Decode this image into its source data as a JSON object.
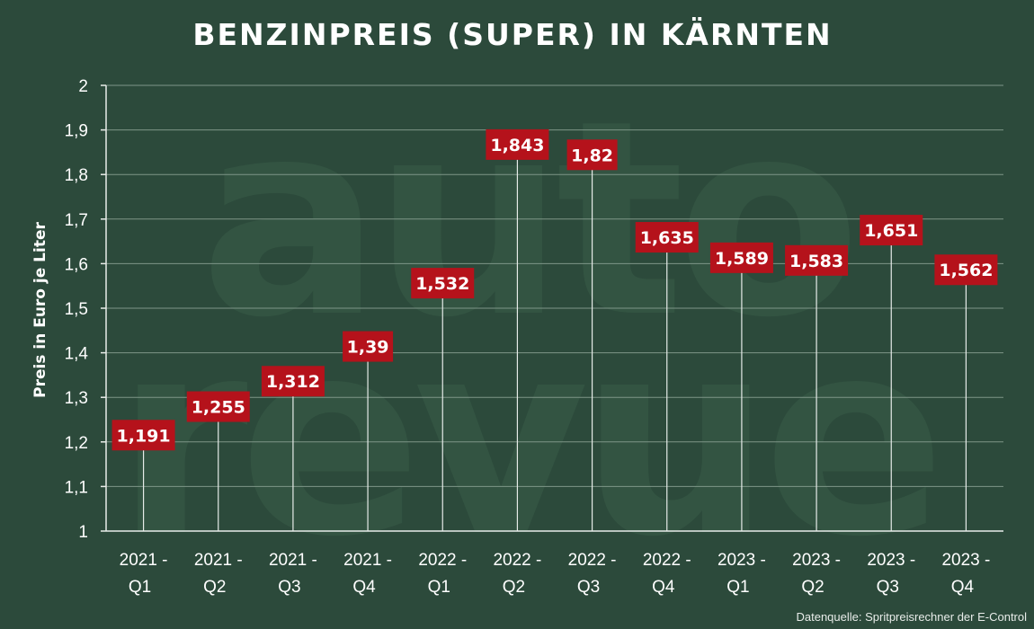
{
  "chart_data": {
    "type": "bar",
    "title": "BENZINPREIS (SUPER) IN KÄRNTEN",
    "ylabel": "Preis in Euro je Liter",
    "xlabel": "",
    "ylim": [
      1,
      2
    ],
    "yticks": [
      "1",
      "1,1",
      "1,2",
      "1,3",
      "1,4",
      "1,5",
      "1,6",
      "1,7",
      "1,8",
      "1,9",
      "2"
    ],
    "categories": [
      [
        "2021 -",
        "Q1"
      ],
      [
        "2021 -",
        "Q2"
      ],
      [
        "2021 -",
        "Q3"
      ],
      [
        "2021 -",
        "Q4"
      ],
      [
        "2022 -",
        "Q1"
      ],
      [
        "2022 -",
        "Q2"
      ],
      [
        "2022 -",
        "Q3"
      ],
      [
        "2022 -",
        "Q4"
      ],
      [
        "2023 -",
        "Q1"
      ],
      [
        "2023 -",
        "Q2"
      ],
      [
        "2023 -",
        "Q3"
      ],
      [
        "2023 -",
        "Q4"
      ]
    ],
    "values": [
      1.191,
      1.255,
      1.312,
      1.39,
      1.532,
      1.843,
      1.82,
      1.635,
      1.589,
      1.583,
      1.651,
      1.562
    ],
    "value_labels": [
      "1,191",
      "1,255",
      "1,312",
      "1,39",
      "1,532",
      "1,843",
      "1,82",
      "1,635",
      "1,589",
      "1,583",
      "1,651",
      "1,562"
    ],
    "grid": true,
    "source": "Datenquelle: Spritpreisrechner der E-Control",
    "watermark": [
      "auto",
      "revue"
    ]
  },
  "colors": {
    "background": "#2c4a3b",
    "watermark": "#335442",
    "grid": "#7e9688",
    "axis": "#e8ece9",
    "text": "#ffffff",
    "label_bg": "#b5121b",
    "stem": "#e6ebe8"
  }
}
